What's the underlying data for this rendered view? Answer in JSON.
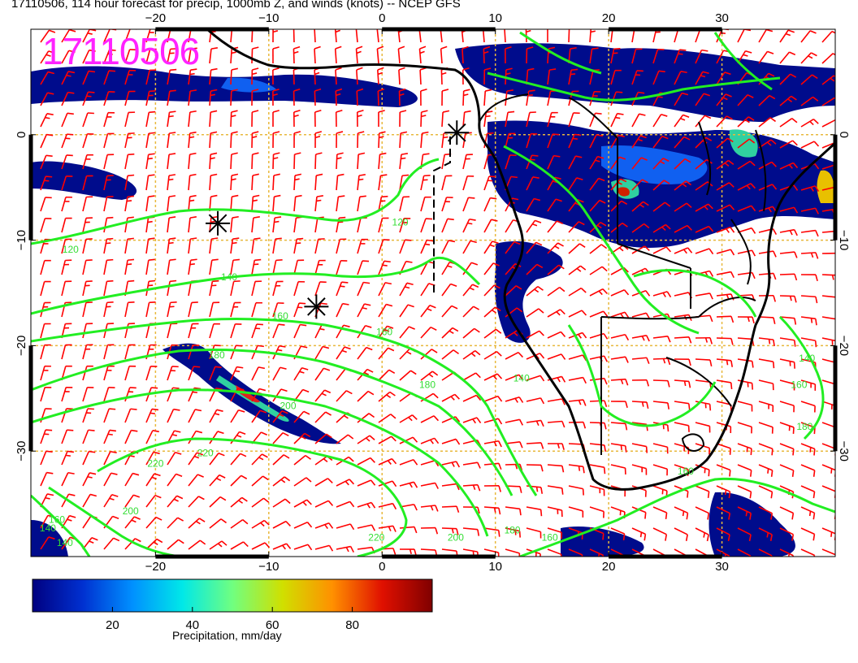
{
  "title": "17110506, 114 hour forecast for precip, 1000mb Z, and winds (knots) -- NCEP GFS",
  "run_stamp": "17110506",
  "map": {
    "lon_range": [
      -31,
      40
    ],
    "lat_range": [
      -40,
      10
    ],
    "lon_ticks": [
      -20,
      -10,
      0,
      10,
      20,
      30
    ],
    "lon_tick_labels": [
      "−20",
      "−10",
      "0",
      "10",
      "20",
      "30"
    ],
    "lat_ticks": [
      0,
      -10,
      -20,
      -30
    ],
    "lat_tick_labels": [
      "0",
      "−10",
      "−20",
      "−30"
    ],
    "grid": true,
    "grid_color": "#e8b83c",
    "coastline_color": "#000000",
    "wind_barb_color": "#ff0000",
    "contour_color": "#22ee22",
    "contour_levels": [
      120,
      140,
      160,
      180,
      200,
      220
    ],
    "contour_labels": [
      {
        "text": "120",
        "lon": -27.5,
        "lat": -11.2
      },
      {
        "text": "120",
        "lon": 1.6,
        "lat": -8.6
      },
      {
        "text": "140",
        "lon": -13.5,
        "lat": -13.8
      },
      {
        "text": "160",
        "lon": -9.0,
        "lat": -17.5
      },
      {
        "text": "160",
        "lon": 0.2,
        "lat": -19.0
      },
      {
        "text": "180",
        "lon": -14.6,
        "lat": -21.2
      },
      {
        "text": "180",
        "lon": 4.0,
        "lat": -24.0
      },
      {
        "text": "140",
        "lon": 12.3,
        "lat": -23.4
      },
      {
        "text": "200",
        "lon": -8.3,
        "lat": -26.0
      },
      {
        "text": "220",
        "lon": -15.6,
        "lat": -30.5
      },
      {
        "text": "220",
        "lon": -20.0,
        "lat": -31.5
      },
      {
        "text": "200",
        "lon": -22.2,
        "lat": -36.0
      },
      {
        "text": "160",
        "lon": -28.7,
        "lat": -36.8
      },
      {
        "text": "140",
        "lon": -29.5,
        "lat": -37.6
      },
      {
        "text": "140",
        "lon": -28.0,
        "lat": -39.0
      },
      {
        "text": "220",
        "lon": -0.5,
        "lat": -38.5
      },
      {
        "text": "200",
        "lon": 6.5,
        "lat": -38.5
      },
      {
        "text": "180",
        "lon": 11.5,
        "lat": -37.8
      },
      {
        "text": "160",
        "lon": 14.8,
        "lat": -38.5
      },
      {
        "text": "160",
        "lon": 26.8,
        "lat": -32.2
      },
      {
        "text": "180",
        "lon": 37.3,
        "lat": -28.0
      },
      {
        "text": "160",
        "lon": 36.8,
        "lat": -24.0
      },
      {
        "text": "140",
        "lon": 37.5,
        "lat": -21.5
      }
    ],
    "markers": [
      {
        "lon": 6.6,
        "lat": 0.2
      },
      {
        "lon": -14.5,
        "lat": -8.4
      },
      {
        "lon": -5.8,
        "lat": -16.3
      }
    ]
  },
  "colorbar": {
    "ticks": [
      20,
      40,
      60,
      80
    ],
    "tick_labels": [
      "20",
      "40",
      "60",
      "80"
    ],
    "range": [
      0,
      100
    ],
    "label": "Precipitation, mm/day",
    "colors": [
      "#000080",
      "#0030d0",
      "#0090ff",
      "#00e8e8",
      "#70ff80",
      "#d0e000",
      "#ff9000",
      "#e01000",
      "#800000"
    ]
  }
}
